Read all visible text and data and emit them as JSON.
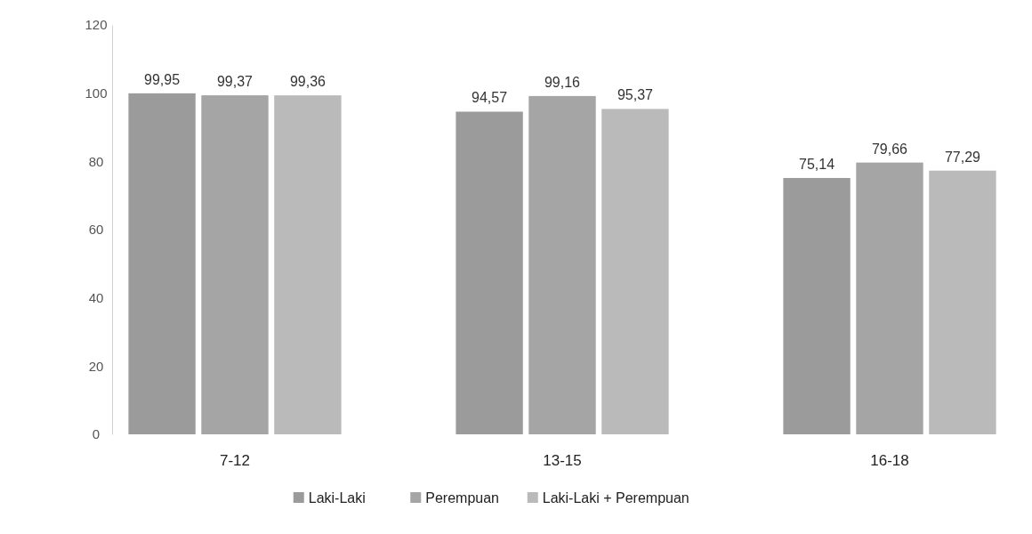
{
  "chart_data": {
    "type": "bar",
    "categories": [
      "7-12",
      "13-15",
      "16-18"
    ],
    "series": [
      {
        "name": "Laki-Laki",
        "color": "#9b9b9b",
        "values": [
          99.95,
          94.57,
          75.14
        ]
      },
      {
        "name": "Perempuan",
        "color": "#a5a5a5",
        "values": [
          99.37,
          99.16,
          79.66
        ]
      },
      {
        "name": "Laki-Laki + Perempuan",
        "color": "#bababa",
        "values": [
          99.36,
          95.37,
          77.29
        ]
      }
    ],
    "value_labels": [
      [
        "99,95",
        "94,57",
        "75,14"
      ],
      [
        "99,37",
        "99,16",
        "79,66"
      ],
      [
        "99,36",
        "95,37",
        "77,29"
      ]
    ],
    "ylim": [
      0,
      120
    ],
    "yticks": [
      0,
      20,
      40,
      60,
      80,
      100,
      120
    ],
    "grid": false,
    "legend": "bottom"
  }
}
